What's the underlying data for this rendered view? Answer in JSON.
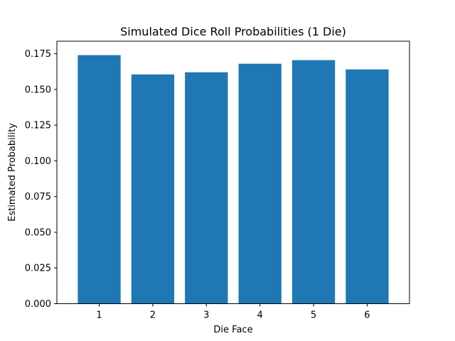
{
  "chart_data": {
    "type": "bar",
    "title": "Simulated Dice Roll Probabilities (1 Die)",
    "xlabel": "Die Face",
    "ylabel": "Estimated Probability",
    "categories": [
      "1",
      "2",
      "3",
      "4",
      "5",
      "6"
    ],
    "values": [
      0.174,
      0.1605,
      0.162,
      0.168,
      0.1705,
      0.164
    ],
    "ylim": [
      0,
      0.18375
    ],
    "yticks": [
      0.0,
      0.025,
      0.05,
      0.075,
      0.1,
      0.125,
      0.15,
      0.175
    ],
    "ytick_labels": [
      "0.000",
      "0.025",
      "0.050",
      "0.075",
      "0.100",
      "0.125",
      "0.150",
      "0.175"
    ],
    "grid": false,
    "legend": "none",
    "bar_color": "#1f77b4"
  }
}
